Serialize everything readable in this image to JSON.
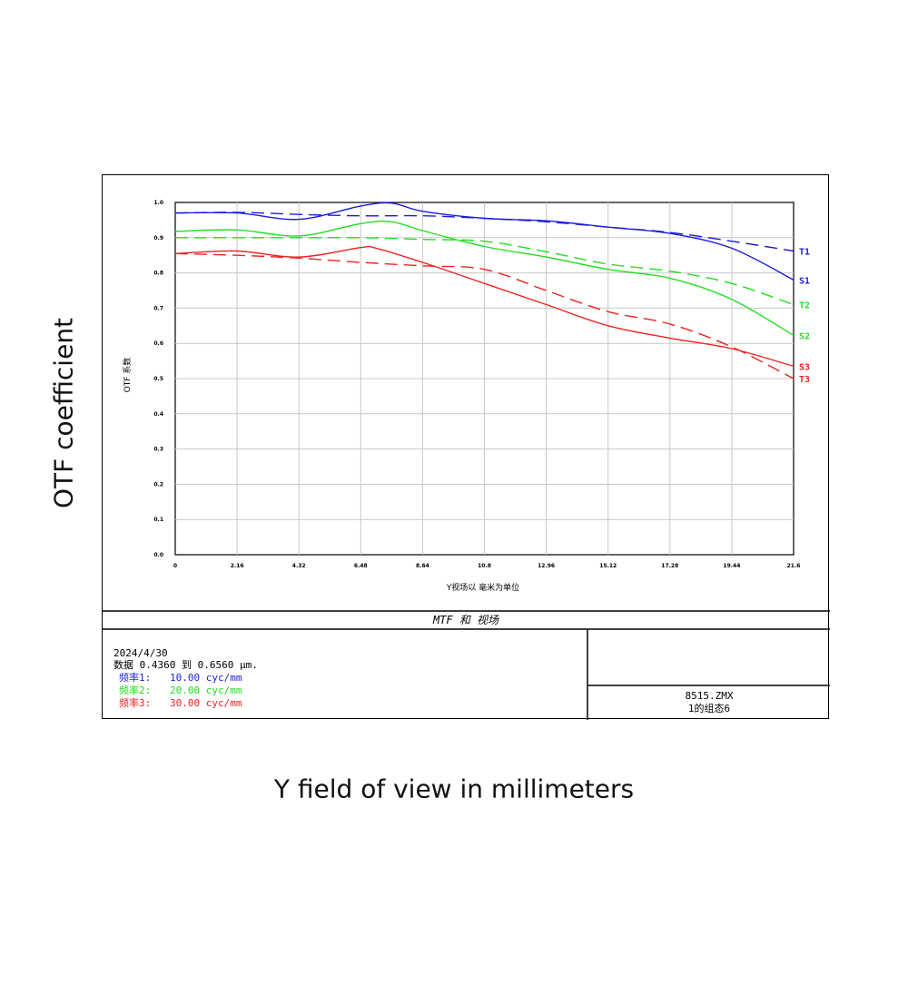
{
  "outer": {
    "ylabel": "OTF coefficient",
    "xlabel": "Y field of view in millimeters"
  },
  "footer": {
    "title": "MTF 和 视场",
    "date": "2024/4/30",
    "data_line": "数据 0.4360 到 0.6560 μm.",
    "freq_lines": [
      {
        "label": "频率1:",
        "value": "10.00 cyc/mm",
        "color": "#1c1cdc"
      },
      {
        "label": "频率2:",
        "value": "20.00 cyc/mm",
        "color": "#22dd22"
      },
      {
        "label": "频率3:",
        "value": "30.00 cyc/mm",
        "color": "#ee2222"
      }
    ],
    "file": "8515.ZMX",
    "config": "1的组态6"
  },
  "chart_data": {
    "type": "line",
    "title": "",
    "xlabel": "Y视场以 毫米为单位",
    "ylabel": "OTF 系数",
    "xlim": [
      0,
      21.6
    ],
    "ylim": [
      0,
      1.0
    ],
    "grid": true,
    "x_ticks": [
      0,
      2.16,
      4.32,
      6.48,
      8.64,
      10.8,
      12.96,
      15.12,
      17.28,
      19.44,
      21.6
    ],
    "x_tick_labels": [
      "0",
      "2.16",
      "4.32",
      "6.48",
      "8.64",
      "10.8",
      "12.96",
      "15.12",
      "17.28",
      "19.44",
      "21.6"
    ],
    "y_ticks": [
      0,
      0.1,
      0.2,
      0.3,
      0.4,
      0.5,
      0.6,
      0.7,
      0.8,
      0.9,
      1.0
    ],
    "y_tick_labels": [
      "0.0",
      "0.1",
      "0.2",
      "0.3",
      "0.4",
      "0.5",
      "0.6",
      "0.7",
      "0.8",
      "0.9",
      "1.0"
    ],
    "series": [
      {
        "name": "T1",
        "color": "#1c1cdc",
        "dash": true,
        "x": [
          0,
          2.16,
          4.32,
          6.48,
          8.64,
          10.8,
          12.96,
          15.12,
          17.28,
          19.44,
          21.6
        ],
        "y": [
          0.97,
          0.972,
          0.966,
          0.962,
          0.962,
          0.955,
          0.945,
          0.93,
          0.915,
          0.89,
          0.862
        ]
      },
      {
        "name": "S1",
        "color": "#1c1cdc",
        "dash": false,
        "x": [
          0,
          2.16,
          4.32,
          6.48,
          7.56,
          8.64,
          10.8,
          12.96,
          15.12,
          17.28,
          19.44,
          21.6
        ],
        "y": [
          0.97,
          0.97,
          0.952,
          0.99,
          0.998,
          0.975,
          0.955,
          0.948,
          0.93,
          0.912,
          0.87,
          0.78
        ]
      },
      {
        "name": "T2",
        "color": "#22dd22",
        "dash": true,
        "x": [
          0,
          2.16,
          4.32,
          6.48,
          8.64,
          10.8,
          12.96,
          15.12,
          17.28,
          19.44,
          21.6
        ],
        "y": [
          0.9,
          0.9,
          0.9,
          0.9,
          0.895,
          0.89,
          0.86,
          0.825,
          0.805,
          0.77,
          0.71
        ]
      },
      {
        "name": "S2",
        "color": "#22dd22",
        "dash": false,
        "x": [
          0,
          2.16,
          4.32,
          6.48,
          7.56,
          8.64,
          10.8,
          12.96,
          15.12,
          17.28,
          19.44,
          21.6
        ],
        "y": [
          0.918,
          0.922,
          0.905,
          0.94,
          0.945,
          0.92,
          0.875,
          0.845,
          0.81,
          0.785,
          0.725,
          0.623
        ]
      },
      {
        "name": "S3",
        "color": "#ee2222",
        "dash": false,
        "x": [
          0,
          2.16,
          4.32,
          6.48,
          7.02,
          8.64,
          10.8,
          12.96,
          15.12,
          17.28,
          19.44,
          21.6
        ],
        "y": [
          0.855,
          0.862,
          0.845,
          0.872,
          0.87,
          0.83,
          0.77,
          0.71,
          0.65,
          0.615,
          0.585,
          0.535
        ]
      },
      {
        "name": "T3",
        "color": "#ee2222",
        "dash": true,
        "x": [
          0,
          2.16,
          4.32,
          6.48,
          8.64,
          10.8,
          12.96,
          15.12,
          17.28,
          19.44,
          21.6
        ],
        "y": [
          0.855,
          0.85,
          0.842,
          0.83,
          0.82,
          0.81,
          0.75,
          0.69,
          0.655,
          0.59,
          0.5
        ]
      }
    ]
  }
}
